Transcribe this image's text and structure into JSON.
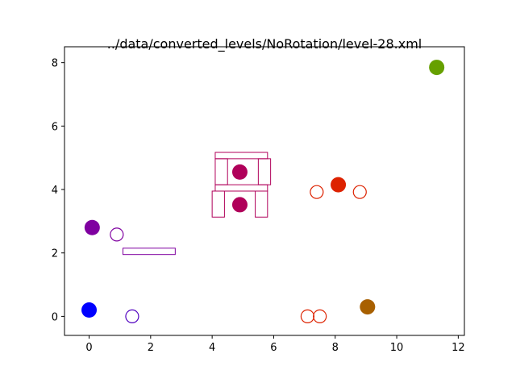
{
  "chart_data": {
    "type": "scatter",
    "title": "../data/converted_levels/NoRotation/level-28.xml",
    "xlabel": "",
    "ylabel": "",
    "xlim": [
      -0.8,
      12.2
    ],
    "ylim": [
      -0.6,
      8.5
    ],
    "xticks": [
      0,
      2,
      4,
      6,
      8,
      10,
      12
    ],
    "yticks": [
      0,
      2,
      4,
      6,
      8
    ],
    "grid": false,
    "legend": "none",
    "filled_circles": [
      {
        "x": 0.0,
        "y": 0.2,
        "color": "#0000ff"
      },
      {
        "x": 0.1,
        "y": 2.8,
        "color": "#7f00a0"
      },
      {
        "x": 4.9,
        "y": 4.55,
        "color": "#b0005a"
      },
      {
        "x": 4.9,
        "y": 3.52,
        "color": "#b0005a"
      },
      {
        "x": 8.1,
        "y": 4.15,
        "color": "#dd2200"
      },
      {
        "x": 9.05,
        "y": 0.3,
        "color": "#a86000"
      },
      {
        "x": 11.3,
        "y": 7.85,
        "color": "#66a000"
      }
    ],
    "hollow_circles": [
      {
        "x": 1.4,
        "y": 0.0,
        "color": "#5000c0"
      },
      {
        "x": 0.9,
        "y": 2.58,
        "color": "#7f00a0"
      },
      {
        "x": 7.4,
        "y": 3.92,
        "color": "#dd2200"
      },
      {
        "x": 8.8,
        "y": 3.92,
        "color": "#dd2200"
      },
      {
        "x": 7.1,
        "y": 0.0,
        "color": "#dd2200"
      },
      {
        "x": 7.5,
        "y": 0.0,
        "color": "#dd2200"
      }
    ],
    "rectangles": [
      {
        "x0": 1.1,
        "y0": 1.95,
        "x1": 2.8,
        "y1": 2.15,
        "color": "#7f00a0"
      },
      {
        "x0": 4.1,
        "y0": 4.97,
        "x1": 5.8,
        "y1": 5.17,
        "color": "#b0005a"
      },
      {
        "x0": 4.1,
        "y0": 4.15,
        "x1": 4.5,
        "y1": 4.97,
        "color": "#b0005a"
      },
      {
        "x0": 5.5,
        "y0": 4.15,
        "x1": 5.9,
        "y1": 4.97,
        "color": "#b0005a"
      },
      {
        "x0": 4.1,
        "y0": 3.95,
        "x1": 5.8,
        "y1": 4.15,
        "color": "#b0005a"
      },
      {
        "x0": 4.0,
        "y0": 3.13,
        "x1": 4.4,
        "y1": 3.95,
        "color": "#b0005a"
      },
      {
        "x0": 5.4,
        "y0": 3.13,
        "x1": 5.8,
        "y1": 3.95,
        "color": "#b0005a"
      }
    ]
  }
}
